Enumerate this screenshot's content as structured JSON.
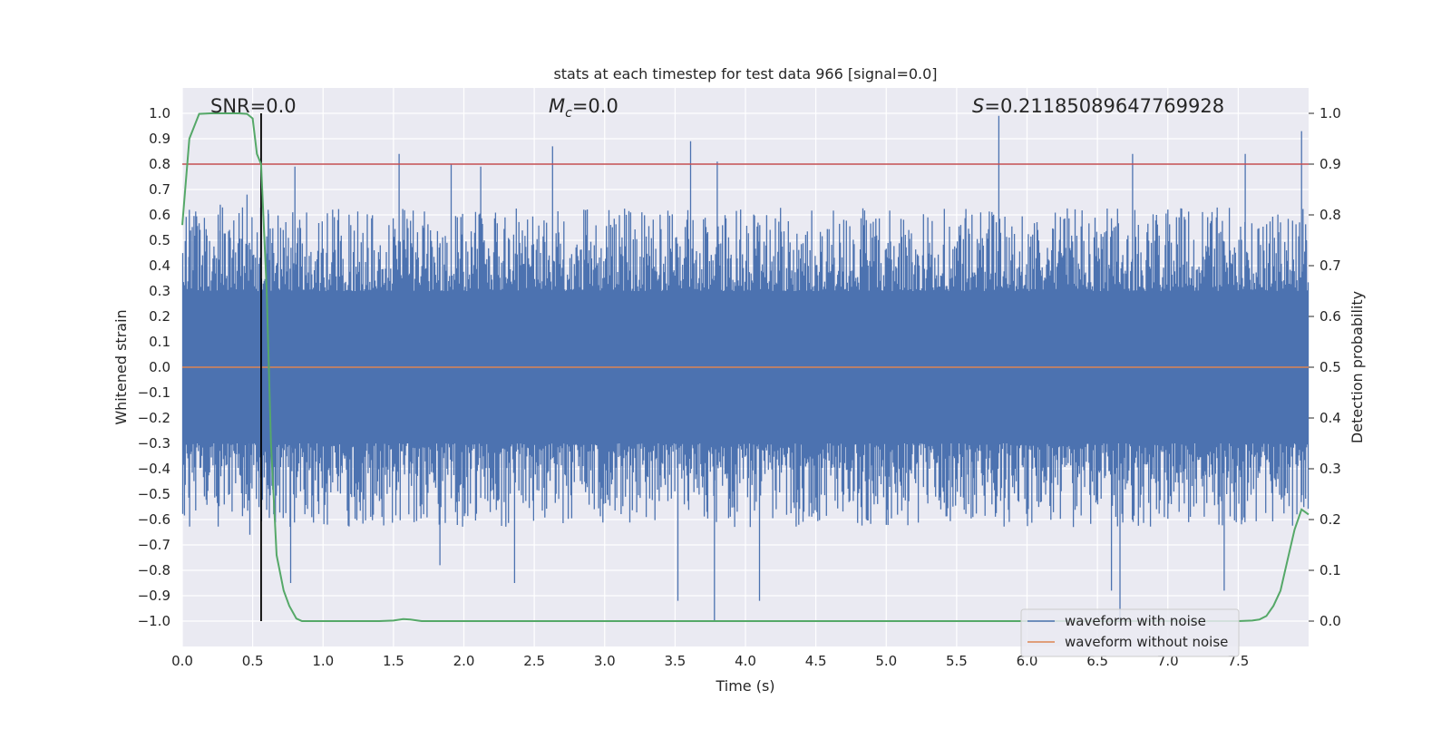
{
  "chart_data": {
    "type": "line",
    "title": "stats at each timestep for test data 966 [signal=0.0]",
    "xlabel": "Time (s)",
    "ylabel": "Whitened strain",
    "y2label": "Detection probability",
    "xlim": [
      0.0,
      8.0
    ],
    "ylim": [
      -1.1,
      1.1
    ],
    "y2lim": [
      -0.05,
      1.05
    ],
    "xticks": [
      "0.0",
      "0.5",
      "1.0",
      "1.5",
      "2.0",
      "2.5",
      "3.0",
      "3.5",
      "4.0",
      "4.5",
      "5.0",
      "5.5",
      "6.0",
      "6.5",
      "7.0",
      "7.5"
    ],
    "yticks": [
      "−1.0",
      "−0.9",
      "−0.8",
      "−0.7",
      "−0.6",
      "−0.5",
      "−0.4",
      "−0.3",
      "−0.2",
      "−0.1",
      "0.0",
      "0.1",
      "0.2",
      "0.3",
      "0.4",
      "0.5",
      "0.6",
      "0.7",
      "0.8",
      "0.9",
      "1.0"
    ],
    "y2ticks": [
      "0.0",
      "0.1",
      "0.2",
      "0.3",
      "0.4",
      "0.5",
      "0.6",
      "0.7",
      "0.8",
      "0.9",
      "1.0"
    ],
    "grid": true,
    "legend_position": "lower-right",
    "annotations": {
      "snr": "SNR=0.0",
      "mc_symbol": "M",
      "mc_sub": "c",
      "mc_value": "=0.0",
      "s_symbol": "S",
      "s_value": "=0.21185089647769928"
    },
    "threshold": {
      "axis": "right",
      "value": 0.9,
      "color": "#c44e52"
    },
    "marker_time": 0.56,
    "noise_envelope": {
      "positive_peaks": [
        [
          0.05,
          0.62
        ],
        [
          0.27,
          0.64
        ],
        [
          0.46,
          0.68
        ],
        [
          0.61,
          0.62
        ],
        [
          0.8,
          0.79
        ],
        [
          1.54,
          0.84
        ],
        [
          1.91,
          0.8
        ],
        [
          2.12,
          0.79
        ],
        [
          2.63,
          0.87
        ],
        [
          3.61,
          0.89
        ],
        [
          3.8,
          0.81
        ],
        [
          5.8,
          0.99
        ],
        [
          6.75,
          0.84
        ],
        [
          7.55,
          0.84
        ],
        [
          7.95,
          0.93
        ]
      ],
      "negative_peaks": [
        [
          0.05,
          -0.5
        ],
        [
          0.48,
          -0.66
        ],
        [
          0.77,
          -0.85
        ],
        [
          1.83,
          -0.78
        ],
        [
          2.36,
          -0.85
        ],
        [
          3.52,
          -0.92
        ],
        [
          3.78,
          -1.0
        ],
        [
          4.1,
          -0.92
        ],
        [
          6.6,
          -0.88
        ],
        [
          6.66,
          -1.0
        ],
        [
          7.4,
          -0.88
        ]
      ],
      "typical_upper": 0.55,
      "typical_lower": -0.55
    },
    "series": [
      {
        "name": "waveform with noise",
        "color": "#4c72b0",
        "axis": "left"
      },
      {
        "name": "waveform without noise",
        "color": "#dd8452",
        "axis": "left",
        "x": [
          0.0,
          8.0
        ],
        "values": [
          0.0,
          0.0
        ]
      },
      {
        "color": "#55a868",
        "axis": "right",
        "x": [
          0.0,
          0.05,
          0.12,
          0.2,
          0.3,
          0.4,
          0.46,
          0.5,
          0.53,
          0.56,
          0.6,
          0.63,
          0.67,
          0.72,
          0.76,
          0.81,
          0.85,
          1.0,
          1.4,
          1.5,
          1.57,
          1.62,
          1.7,
          2.0,
          3.0,
          4.0,
          5.0,
          6.0,
          7.0,
          7.3,
          7.5,
          7.6,
          7.65,
          7.7,
          7.75,
          7.8,
          7.85,
          7.9,
          7.95,
          8.0
        ],
        "values": [
          0.78,
          0.95,
          0.999,
          1.0,
          1.0,
          1.0,
          0.999,
          0.99,
          0.92,
          0.9,
          0.65,
          0.35,
          0.13,
          0.06,
          0.03,
          0.005,
          0.0,
          0.0,
          0.0,
          0.001,
          0.004,
          0.003,
          0.0,
          0.0,
          0.0,
          0.0,
          0.0,
          0.0,
          0.0,
          0.0,
          0.0,
          0.001,
          0.003,
          0.01,
          0.03,
          0.06,
          0.12,
          0.18,
          0.22,
          0.21
        ]
      }
    ]
  }
}
